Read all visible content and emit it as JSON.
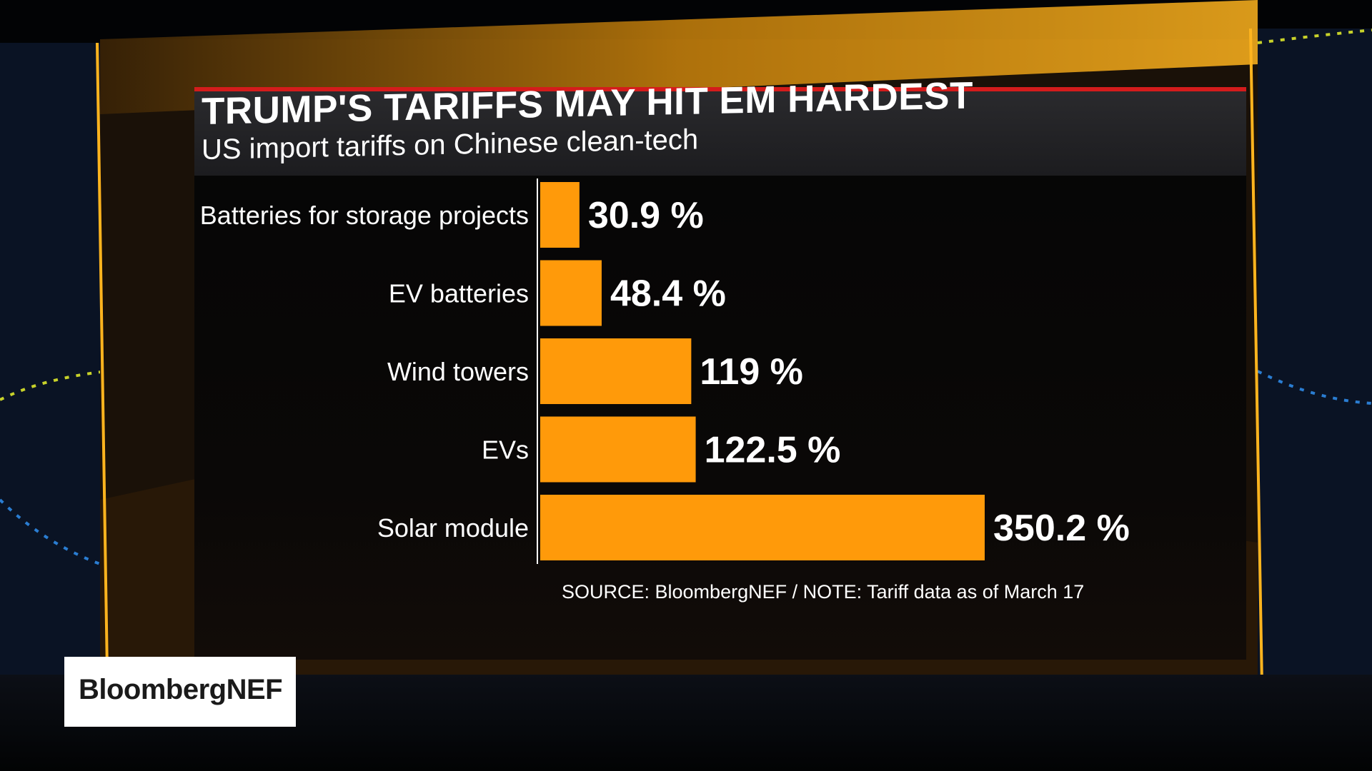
{
  "colors": {
    "bar": "#ff9a0a",
    "accent_red": "#d41c1c",
    "text": "#ffffff"
  },
  "chart_data": {
    "type": "bar",
    "orientation": "horizontal",
    "title": "TRUMP'S TARIFFS MAY HIT EM HARDEST",
    "subtitle": "US import tariffs on Chinese clean-tech",
    "categories": [
      "Batteries for storage projects",
      "EV batteries",
      "Wind towers",
      "EVs",
      "Solar module"
    ],
    "values": [
      30.9,
      48.4,
      119,
      122.5,
      350.2
    ],
    "value_labels": [
      "30.9 %",
      "48.4 %",
      "119 %",
      "122.5 %",
      "350.2 %"
    ],
    "unit": "%",
    "xlim": [
      0,
      350.2
    ],
    "grid": false,
    "legend": "none"
  },
  "source_note": "SOURCE: BloombergNEF / NOTE: Tariff data as of March 17",
  "logo": "BloombergNEF"
}
